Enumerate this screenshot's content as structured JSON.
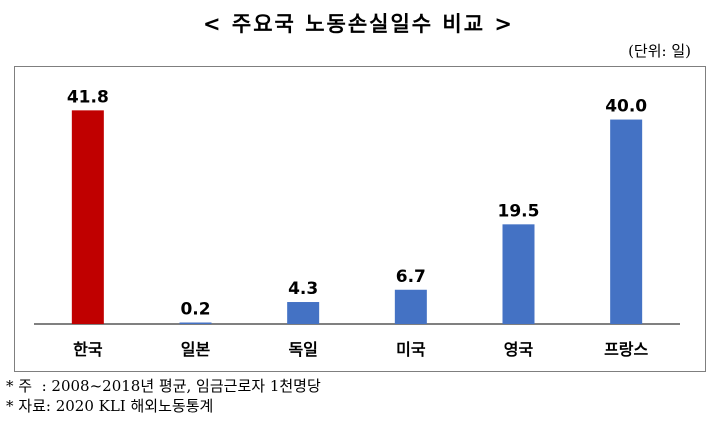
{
  "title": "< 주요국 노동손실일수 비교 >",
  "unit": "(단위: 일)",
  "notes": [
    "* 주  : 2008~2018년 평균, 임금근로자 1천명당",
    "* 자료: 2020 KLI 해외노동통계"
  ],
  "chart_data": {
    "type": "bar",
    "title": "< 주요국 노동손실일수 비교 >",
    "categories": [
      "한국",
      "일본",
      "독일",
      "미국",
      "영국",
      "프랑스"
    ],
    "values": [
      41.8,
      0.2,
      4.3,
      6.7,
      19.5,
      40.0
    ],
    "value_labels": [
      "41.8",
      "0.2",
      "4.3",
      "6.7",
      "19.5",
      "40.0"
    ],
    "ylim": [
      0,
      45
    ],
    "grid": false,
    "legend": "none",
    "colors": [
      "#c00000",
      "#4472c4",
      "#4472c4",
      "#4472c4",
      "#4472c4",
      "#4472c4"
    ]
  }
}
